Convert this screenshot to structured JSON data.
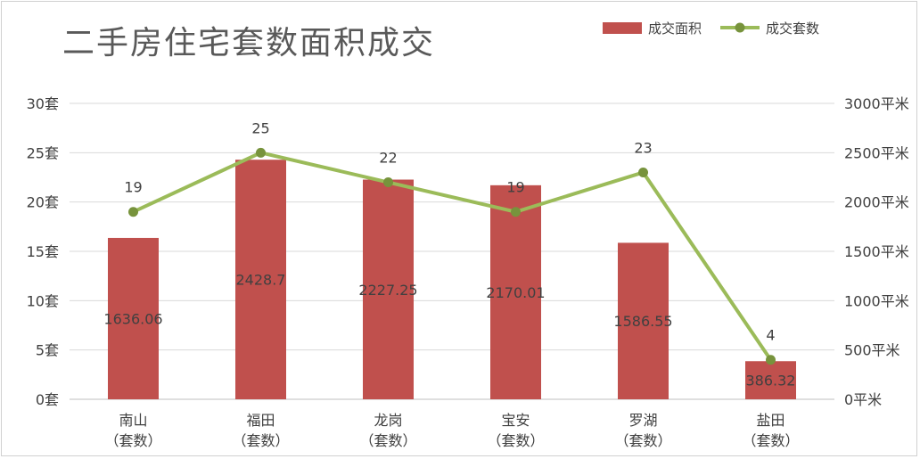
{
  "chart_data": {
    "type": "bar+line",
    "title": "二手房住宅套数面积成交",
    "categories": [
      [
        "南山",
        "（套数）"
      ],
      [
        "福田",
        "（套数）"
      ],
      [
        "龙岗",
        "（套数）"
      ],
      [
        "宝安",
        "（套数）"
      ],
      [
        "罗湖",
        "（套数）"
      ],
      [
        "盐田",
        "（套数）"
      ]
    ],
    "series": [
      {
        "name": "成交面积",
        "type": "bar",
        "axis": "right",
        "color": "#c0504d",
        "values": [
          1636.06,
          2428.7,
          2227.25,
          2170.01,
          1586.55,
          386.32
        ],
        "labels": [
          "1636.06",
          "2428.7",
          "2227.25",
          "2170.01",
          "1586.55",
          "386.32"
        ]
      },
      {
        "name": "成交套数",
        "type": "line",
        "axis": "left",
        "color": "#9bbb59",
        "values": [
          19,
          25,
          22,
          19,
          23,
          4
        ],
        "labels": [
          "19",
          "25",
          "22",
          "19",
          "23",
          "4"
        ]
      }
    ],
    "y_left": {
      "min": 0,
      "max": 30,
      "ticks": [
        "0套",
        "5套",
        "10套",
        "15套",
        "20套",
        "25套",
        "30套"
      ]
    },
    "y_right": {
      "min": 0,
      "max": 3000,
      "ticks": [
        "0平米",
        "500平米",
        "1000平米",
        "1500平米",
        "2000平米",
        "2500平米",
        "3000平米"
      ]
    },
    "grid": true,
    "legend_position": "top-right"
  }
}
